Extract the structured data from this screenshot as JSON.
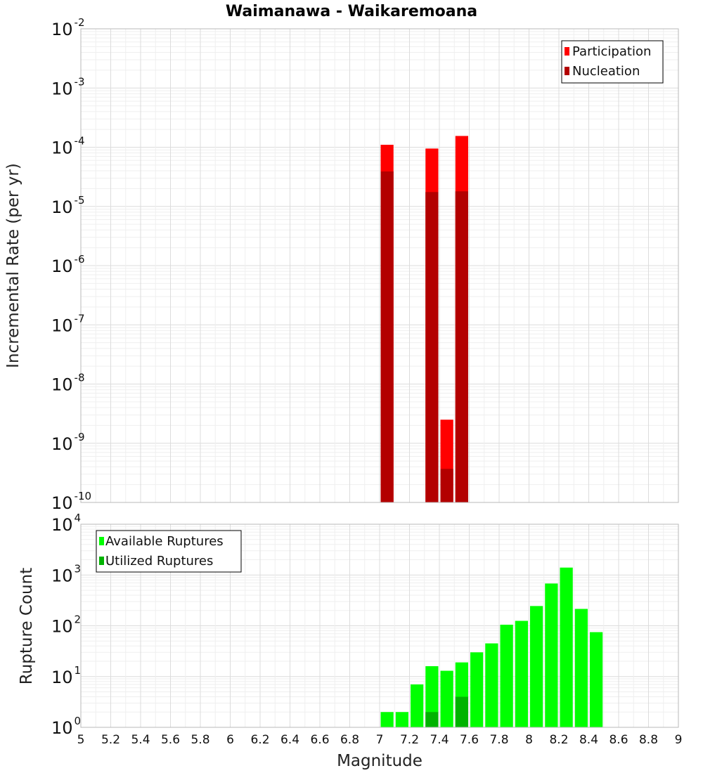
{
  "title": "Waimanawa - Waikaremoana",
  "xlabel": "Magnitude",
  "colors": {
    "participation": "#ff0000",
    "nucleation": "#b30000",
    "available": "#00ff00",
    "utilized": "#00b300"
  },
  "chart_data": [
    {
      "type": "bar",
      "ylabel": "Incremental Rate (per yr)",
      "yscale": "log",
      "ylim": [
        1e-10,
        0.01
      ],
      "xlim": [
        5,
        9
      ],
      "bin_width": 0.1,
      "legend_position": "top-right",
      "grid": true,
      "x_ticks": [
        "5",
        "5.2",
        "5.4",
        "5.6",
        "5.8",
        "6",
        "6.2",
        "6.4",
        "6.6",
        "6.8",
        "7",
        "7.2",
        "7.4",
        "7.6",
        "7.8",
        "8",
        "8.2",
        "8.4",
        "8.6",
        "8.8",
        "9"
      ],
      "y_ticks": [
        {
          "base": "10",
          "exp": "-10"
        },
        {
          "base": "10",
          "exp": "-9"
        },
        {
          "base": "10",
          "exp": "-8"
        },
        {
          "base": "10",
          "exp": "-7"
        },
        {
          "base": "10",
          "exp": "-6"
        },
        {
          "base": "10",
          "exp": "-5"
        },
        {
          "base": "10",
          "exp": "-4"
        },
        {
          "base": "10",
          "exp": "-3"
        },
        {
          "base": "10",
          "exp": "-2"
        }
      ],
      "series": [
        {
          "name": "Participation",
          "color": "#ff0000",
          "x": [
            7.05,
            7.35,
            7.45,
            7.55
          ],
          "values": [
            0.00011,
            9.5e-05,
            2.5e-09,
            0.000155
          ]
        },
        {
          "name": "Nucleation",
          "color": "#b30000",
          "x": [
            7.05,
            7.35,
            7.45,
            7.55
          ],
          "values": [
            3.9e-05,
            1.75e-05,
            3.7e-10,
            1.8e-05
          ]
        }
      ]
    },
    {
      "type": "bar",
      "ylabel": "Rupture Count",
      "yscale": "log",
      "ylim": [
        1,
        10000
      ],
      "xlim": [
        5,
        9
      ],
      "bin_width": 0.1,
      "legend_position": "top-left",
      "grid": true,
      "y_ticks": [
        {
          "base": "10",
          "exp": "0"
        },
        {
          "base": "10",
          "exp": "1"
        },
        {
          "base": "10",
          "exp": "2"
        },
        {
          "base": "10",
          "exp": "3"
        },
        {
          "base": "10",
          "exp": "4"
        }
      ],
      "series": [
        {
          "name": "Available Ruptures",
          "color": "#00ff00",
          "x": [
            6.65,
            7.05,
            7.15,
            7.25,
            7.35,
            7.45,
            7.55,
            7.65,
            7.75,
            7.85,
            7.95,
            8.05,
            8.15,
            8.25,
            8.35,
            8.45
          ],
          "values": [
            1,
            2,
            2,
            7,
            16,
            13,
            19,
            30,
            45,
            105,
            125,
            245,
            680,
            1400,
            215,
            75
          ]
        },
        {
          "name": "Utilized Ruptures",
          "color": "#00b300",
          "x": [
            7.05,
            7.35,
            7.45,
            7.55
          ],
          "values": [
            1,
            2,
            1,
            4
          ]
        }
      ]
    }
  ]
}
